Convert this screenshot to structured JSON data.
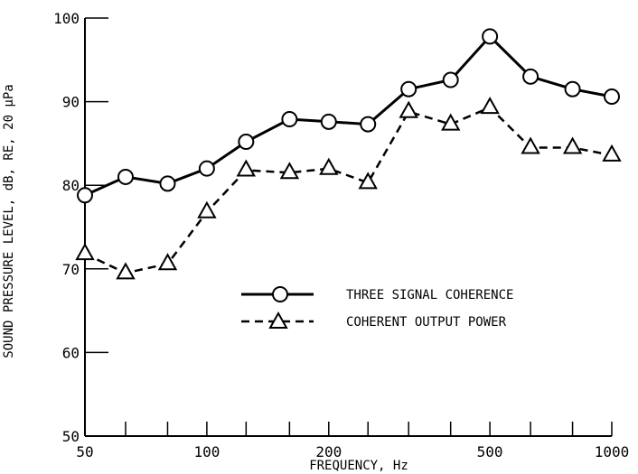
{
  "chart_data": {
    "type": "line",
    "xlabel": "FREQUENCY, Hz",
    "ylabel": "SOUND PRESSURE LEVEL, dB, RE, 20 μPa",
    "xscale": "log",
    "xlim": [
      50,
      1000
    ],
    "ylim": [
      50,
      100
    ],
    "x_tick_labels": [
      "50",
      "100",
      "200",
      "500",
      "1000"
    ],
    "y_tick_labels": [
      "50",
      "60",
      "70",
      "80",
      "90",
      "100"
    ],
    "x_ticks": [
      50,
      63,
      80,
      100,
      125,
      160,
      200,
      250,
      315,
      400,
      500,
      630,
      800,
      1000
    ],
    "y_ticks": [
      50,
      60,
      70,
      80,
      90,
      100
    ],
    "grid": false,
    "legend_position": "center-right",
    "x": [
      50,
      63,
      80,
      100,
      125,
      160,
      200,
      250,
      315,
      400,
      500,
      630,
      800,
      1000
    ],
    "series": [
      {
        "name": "THREE SIGNAL COHERENCE",
        "marker": "circle",
        "line_style": "solid",
        "color": "#000000",
        "values": [
          78.8,
          81.0,
          80.2,
          82.0,
          85.2,
          87.9,
          87.6,
          87.3,
          91.5,
          92.6,
          97.8,
          93.0,
          91.5,
          90.6
        ]
      },
      {
        "name": "COHERENT OUTPUT POWER",
        "marker": "triangle",
        "line_style": "dashed",
        "color": "#000000",
        "values": [
          71.8,
          69.5,
          70.6,
          76.8,
          81.8,
          81.5,
          82.0,
          80.3,
          88.8,
          87.3,
          89.3,
          84.5,
          84.5,
          83.6
        ]
      }
    ]
  }
}
